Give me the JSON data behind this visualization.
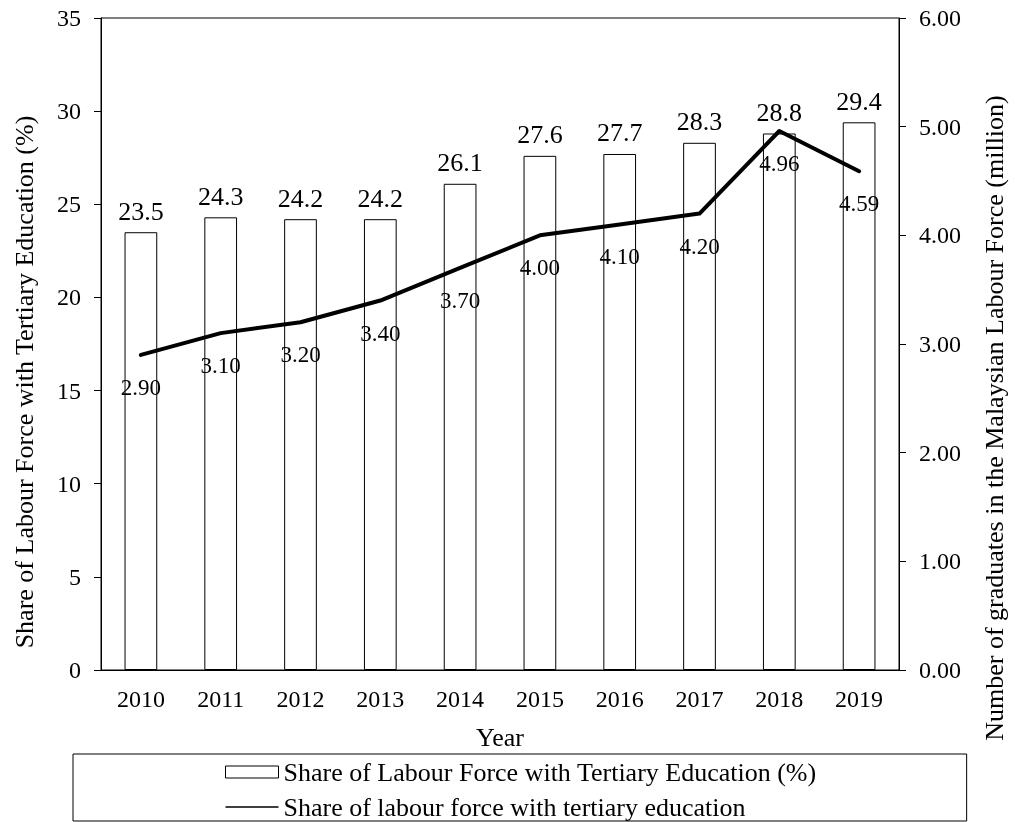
{
  "chart_data": {
    "type": "bar",
    "xlabel": "Year",
    "ylabel": "Share of Labour Force with Tertiary Education (%)",
    "y2label": "Number of graduates in the Malaysian Labour Force (million)",
    "categories": [
      "2010",
      "2011",
      "2012",
      "2013",
      "2014",
      "2015",
      "2016",
      "2017",
      "2018",
      "2019"
    ],
    "series": [
      {
        "name": "Share of Labour Force with Tertiary Education (%)",
        "color": "#ffffff",
        "values": [
          23.5,
          24.3,
          24.2,
          24.2,
          26.1,
          27.6,
          27.7,
          28.3,
          28.8,
          29.4
        ],
        "value_labels": [
          "23.5",
          "24.3",
          "24.2",
          "24.2",
          "26.1",
          "27.6",
          "27.7",
          "28.3",
          "28.8",
          "29.4"
        ]
      },
      {
        "name": "Share of labour force with tertiary education",
        "type": "line",
        "axis": "y2",
        "color": "#000000",
        "values": [
          2.9,
          3.1,
          3.2,
          3.4,
          3.7,
          4.0,
          4.1,
          4.2,
          4.96,
          4.59
        ],
        "value_labels": [
          "2.90",
          "3.10",
          "3.20",
          "3.40",
          "3.70",
          "4.00",
          "4.10",
          "4.20",
          "4.96",
          "4.59"
        ]
      }
    ],
    "ylim": [
      0,
      35
    ],
    "yticks": [
      0,
      5,
      10,
      15,
      20,
      25,
      30,
      35
    ],
    "y2lim": [
      0,
      6
    ],
    "y2ticks": [
      {
        "value": 0,
        "label": "0.00"
      },
      {
        "value": 1,
        "label": "1.00"
      },
      {
        "value": 2,
        "label": "2.00"
      },
      {
        "value": 3,
        "label": "3.00"
      },
      {
        "value": 4,
        "label": "4.00"
      },
      {
        "value": 5,
        "label": "5.00"
      },
      {
        "value": 6,
        "label": "6.00"
      }
    ],
    "grid": false,
    "legend": "bottom",
    "marker": "none"
  }
}
